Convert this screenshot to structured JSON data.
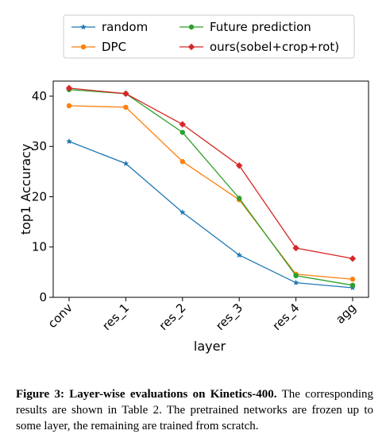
{
  "chart_data": {
    "type": "line",
    "title": "",
    "xlabel": "layer",
    "ylabel": "top1 Accuracy",
    "categories": [
      "conv",
      "res_1",
      "res_2",
      "res_3",
      "res_4",
      "agg"
    ],
    "ylim": [
      0,
      43
    ],
    "yticks": [
      0,
      10,
      20,
      30,
      40
    ],
    "grid": false,
    "legend_position": "top",
    "series": [
      {
        "name": "random",
        "color": "#1f77b4",
        "marker": "star",
        "values": [
          31.0,
          26.6,
          16.9,
          8.4,
          2.9,
          1.9
        ]
      },
      {
        "name": "DPC",
        "color": "#ff7f0e",
        "marker": "circle",
        "values": [
          38.1,
          37.8,
          27.0,
          19.4,
          4.6,
          3.6
        ]
      },
      {
        "name": "Future prediction",
        "color": "#2ca02c",
        "marker": "circle",
        "values": [
          41.3,
          40.5,
          32.8,
          19.7,
          4.3,
          2.4
        ]
      },
      {
        "name": "ours(sobel+crop+rot)",
        "color": "#d62728",
        "marker": "diamond",
        "values": [
          41.6,
          40.5,
          34.4,
          26.2,
          9.8,
          7.7
        ]
      }
    ]
  },
  "caption": {
    "label": "Figure 3: Layer-wise evaluations on Kinetics-400.",
    "text": "The corresponding results are shown in Table 2. The pretrained networks are frozen up to some layer, the remaining are trained from scratch."
  }
}
